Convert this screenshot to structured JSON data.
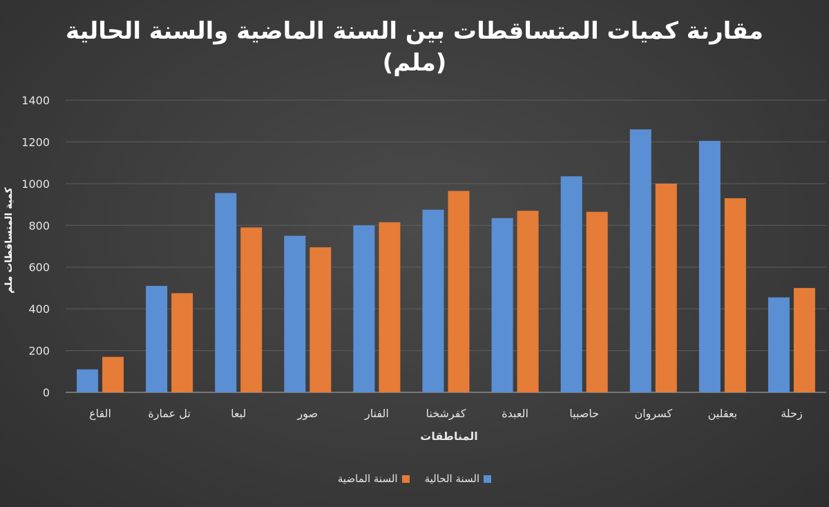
{
  "chart_data": {
    "type": "bar",
    "title_line1": "مقارنة كميات المتساقطات بين السنة الماضية والسنة الحالية",
    "title_line2": "(ملم)",
    "xlabel": "المناطقات",
    "ylabel": "كمية المتساقطات ملم",
    "ylim": [
      0,
      1400
    ],
    "yticks": [
      "0",
      "200",
      "400",
      "600",
      "800",
      "1000",
      "1200",
      "1400"
    ],
    "grid": true,
    "legend_position": "bottom",
    "categories": [
      "القاع",
      "تل عمارة",
      "لبعا",
      "صور",
      "الفنار",
      "كفرشخنا",
      "العبدة",
      "حاصبيا",
      "كسروان",
      "بعقلين",
      "زحلة"
    ],
    "series": [
      {
        "name": "السنة الحالية",
        "color": "#5b8fd4",
        "values": [
          110,
          510,
          955,
          750,
          800,
          875,
          835,
          1035,
          1260,
          1205,
          455
        ]
      },
      {
        "name": "السنة الماضية",
        "color": "#e57c37",
        "values": [
          170,
          475,
          790,
          695,
          815,
          965,
          870,
          865,
          1000,
          930,
          500
        ]
      }
    ]
  }
}
